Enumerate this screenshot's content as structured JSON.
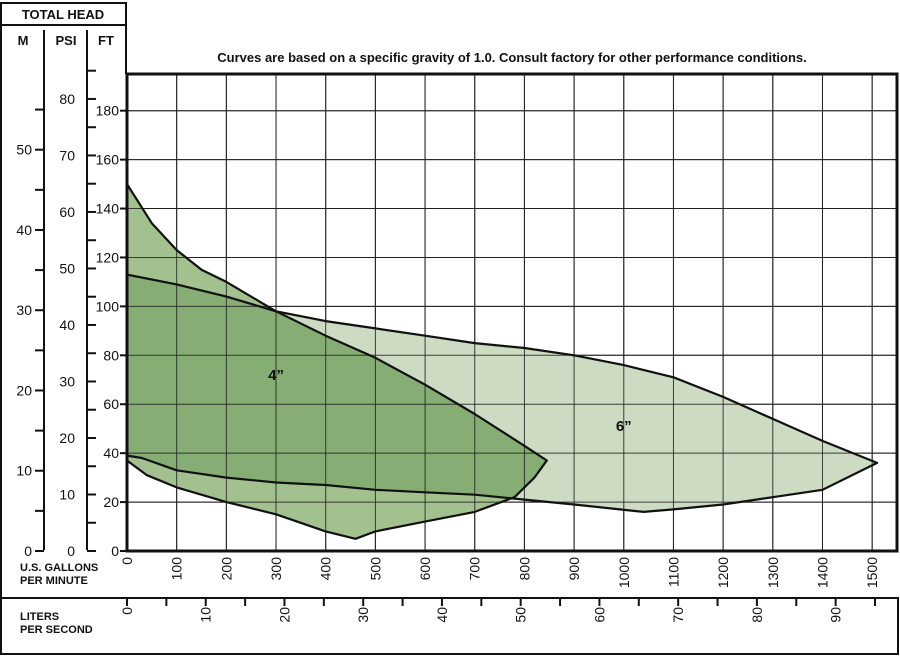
{
  "header": {
    "total_head": "TOTAL HEAD",
    "col_m": "M",
    "col_psi": "PSI",
    "col_ft": "FT"
  },
  "note": "Curves are based on a specific gravity of 1.0. Consult factory for other performance conditions.",
  "chart_data": {
    "type": "area",
    "x_label_gpm": "U.S. GALLONS PER MINUTE",
    "x_label_gpm_lines": [
      "U.S. GALLONS",
      "PER MINUTE"
    ],
    "x_label_lps_lines": [
      "LITERS",
      "PER SECOND"
    ],
    "x_gpm_ticks": [
      0,
      100,
      200,
      300,
      400,
      500,
      600,
      700,
      800,
      900,
      1000,
      1100,
      1200,
      1300,
      1400,
      1500
    ],
    "x_lps_ticks": [
      0,
      10,
      20,
      30,
      40,
      50,
      60,
      70,
      80,
      90
    ],
    "xlim_gpm": [
      0,
      1550
    ],
    "ylim_ft": [
      0,
      195
    ],
    "y_ft_ticks": [
      0,
      20,
      40,
      60,
      80,
      100,
      120,
      140,
      160,
      180
    ],
    "y_psi_ticks": [
      0,
      10,
      20,
      30,
      40,
      50,
      60,
      70,
      80
    ],
    "y_m_ticks": [
      0,
      10,
      20,
      30,
      40,
      50
    ],
    "colors": {
      "light": "#cddbc2",
      "medium": "#a3c18f",
      "dark": "#86ad74",
      "line": "#111111"
    },
    "series": [
      {
        "name": "4”",
        "label_at": [
          300,
          70
        ],
        "upper": [
          [
            0,
            150
          ],
          [
            50,
            134
          ],
          [
            100,
            123
          ],
          [
            150,
            115
          ],
          [
            200,
            110
          ],
          [
            300,
            98
          ],
          [
            400,
            88
          ],
          [
            500,
            79
          ],
          [
            600,
            68
          ],
          [
            700,
            56
          ],
          [
            800,
            43
          ],
          [
            845,
            37
          ]
        ],
        "lower": [
          [
            845,
            37
          ],
          [
            820,
            30
          ],
          [
            780,
            22
          ],
          [
            700,
            16
          ],
          [
            600,
            12
          ],
          [
            500,
            8
          ],
          [
            460,
            5
          ],
          [
            400,
            8
          ],
          [
            300,
            15
          ],
          [
            200,
            20
          ],
          [
            100,
            26
          ],
          [
            40,
            31
          ],
          [
            0,
            37
          ]
        ]
      },
      {
        "name": "6”",
        "label_at": [
          1000,
          49
        ],
        "upper": [
          [
            0,
            113
          ],
          [
            100,
            109
          ],
          [
            200,
            104
          ],
          [
            300,
            98
          ],
          [
            400,
            94
          ],
          [
            500,
            91
          ],
          [
            600,
            88
          ],
          [
            700,
            85
          ],
          [
            800,
            83
          ],
          [
            900,
            80
          ],
          [
            1000,
            76
          ],
          [
            1100,
            71
          ],
          [
            1200,
            63
          ],
          [
            1300,
            54
          ],
          [
            1400,
            45
          ],
          [
            1510,
            36
          ]
        ],
        "lower": [
          [
            1510,
            36
          ],
          [
            1400,
            25
          ],
          [
            1300,
            22
          ],
          [
            1200,
            19
          ],
          [
            1100,
            17
          ],
          [
            1040,
            16
          ],
          [
            900,
            19
          ],
          [
            800,
            21
          ],
          [
            700,
            23
          ],
          [
            600,
            24
          ],
          [
            500,
            25
          ],
          [
            400,
            27
          ],
          [
            300,
            28
          ],
          [
            200,
            30
          ],
          [
            100,
            33
          ],
          [
            30,
            38
          ],
          [
            0,
            39
          ]
        ]
      }
    ]
  }
}
